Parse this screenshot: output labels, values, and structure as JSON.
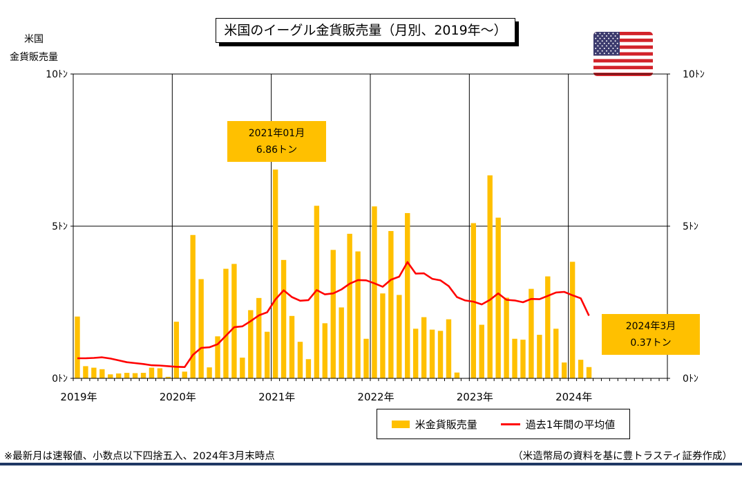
{
  "title": "米国のイーグル金貨販売量（月別、2019年～）",
  "y_unit_label_line1": "米国",
  "y_unit_label_line2": "金貨販売量",
  "annotations": [
    {
      "line1": "2021年01月",
      "line2": "6.86トン"
    },
    {
      "line1": "2024年3月",
      "line2": "0.37トン"
    }
  ],
  "legend": {
    "bar_label": "米金貨販売量",
    "line_label": "過去1年間の平均値"
  },
  "footnote": "※最新月は速報値、小数点以下四捨五入、2024年3月末時点",
  "source": "（米造幣局の資料を基に豊トラスティ証券作成）",
  "colors": {
    "bar": "#ffc000",
    "line": "#ff0000",
    "rule": "#1f3864"
  },
  "chart_data": {
    "type": "bar",
    "x_range": [
      "2019-01",
      "2024-12"
    ],
    "year_labels": [
      "2019年",
      "2020年",
      "2021年",
      "2022年",
      "2023年",
      "2024年"
    ],
    "y_ticks_left": [
      "0ﾄﾝ",
      "5ﾄﾝ",
      "10ﾄﾝ"
    ],
    "y_ticks_right": [
      "0ﾄﾝ",
      "5ﾄﾝ",
      "10ﾄﾝ"
    ],
    "ylim": [
      0,
      10
    ],
    "grid": true,
    "series": [
      {
        "name": "米金貨販売量",
        "type": "bar",
        "values": [
          2.03,
          0.4,
          0.35,
          0.3,
          0.13,
          0.16,
          0.18,
          0.17,
          0.18,
          0.35,
          0.33,
          0.05,
          1.86,
          0.22,
          4.71,
          3.26,
          0.36,
          1.38,
          3.6,
          3.76,
          0.68,
          2.24,
          2.64,
          1.53,
          6.86,
          3.89,
          2.05,
          1.2,
          0.63,
          5.67,
          1.81,
          4.22,
          2.33,
          4.75,
          4.17,
          1.3,
          5.65,
          2.79,
          4.84,
          2.74,
          5.43,
          1.63,
          2.01,
          1.6,
          1.56,
          1.94,
          0.19,
          0,
          5.1,
          1.76,
          6.67,
          5.28,
          2.65,
          1.3,
          1.27,
          2.94,
          1.43,
          3.35,
          1.63,
          0.52,
          3.83,
          0.61,
          0.37
        ]
      },
      {
        "name": "過去1年間の平均値",
        "type": "line",
        "values": [
          0.66,
          0.66,
          0.67,
          0.69,
          0.65,
          0.59,
          0.53,
          0.5,
          0.47,
          0.43,
          0.42,
          0.4,
          0.38,
          0.37,
          0.77,
          1.0,
          1.02,
          1.12,
          1.4,
          1.68,
          1.71,
          1.88,
          2.07,
          2.17,
          2.59,
          2.89,
          2.67,
          2.55,
          2.57,
          2.9,
          2.76,
          2.79,
          2.92,
          3.11,
          3.23,
          3.22,
          3.12,
          3.01,
          3.24,
          3.34,
          3.82,
          3.44,
          3.45,
          3.27,
          3.22,
          3.03,
          2.67,
          2.56,
          2.52,
          2.43,
          2.58,
          2.79,
          2.58,
          2.56,
          2.5,
          2.61,
          2.6,
          2.71,
          2.82,
          2.84,
          2.73,
          2.63,
          2.06
        ]
      }
    ]
  }
}
